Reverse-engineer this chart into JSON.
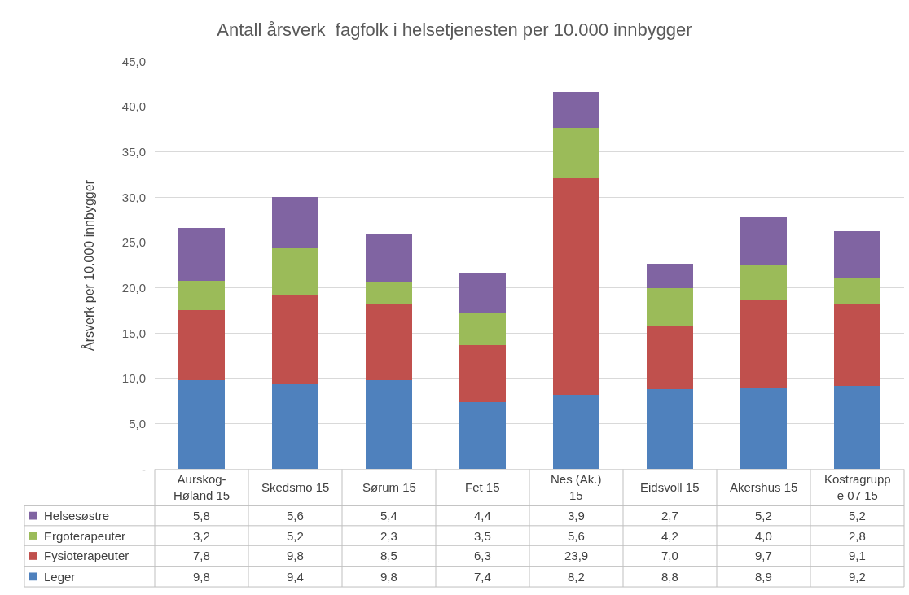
{
  "chart_data": {
    "type": "bar",
    "stacked": true,
    "title": "Antall årsverk  fagfolk i helsetjenesten per 10.000 innbygger",
    "ylabel": "Årsverk per 10.000 innbygger",
    "categories": [
      "Aurskog-Høland 15",
      "Skedsmo 15",
      "Sørum 15",
      "Fet 15",
      "Nes (Ak.) 15",
      "Eidsvoll 15",
      "Akershus 15",
      "Kostragruppe 07 15"
    ],
    "series": [
      {
        "name": "Leger",
        "color": "#4f81bd",
        "values": [
          9.8,
          9.4,
          9.8,
          7.4,
          8.2,
          8.8,
          8.9,
          9.2
        ],
        "value_labels": [
          "9,8",
          "9,4",
          "9,8",
          "7,4",
          "8,2",
          "8,8",
          "8,9",
          "9,2"
        ]
      },
      {
        "name": "Fysioterapeuter",
        "color": "#c0504d",
        "values": [
          7.8,
          9.8,
          8.5,
          6.3,
          23.9,
          7.0,
          9.7,
          9.1
        ],
        "value_labels": [
          "7,8",
          "9,8",
          "8,5",
          "6,3",
          "23,9",
          "7,0",
          "9,7",
          "9,1"
        ]
      },
      {
        "name": "Ergoterapeuter",
        "color": "#9bbb59",
        "values": [
          3.2,
          5.2,
          2.3,
          3.5,
          5.6,
          4.2,
          4.0,
          2.8
        ],
        "value_labels": [
          "3,2",
          "5,2",
          "2,3",
          "3,5",
          "5,6",
          "4,2",
          "4,0",
          "2,8"
        ]
      },
      {
        "name": "Helsesøstre",
        "color": "#8064a2",
        "values": [
          5.8,
          5.6,
          5.4,
          4.4,
          3.9,
          2.7,
          5.2,
          5.2
        ],
        "value_labels": [
          "5,8",
          "5,6",
          "5,4",
          "4,4",
          "3,9",
          "2,7",
          "5,2",
          "5,2"
        ]
      }
    ],
    "ylim": [
      0,
      45
    ],
    "yticks": [
      {
        "value": 0,
        "label": "-"
      },
      {
        "value": 5,
        "label": "5,0"
      },
      {
        "value": 10,
        "label": "10,0"
      },
      {
        "value": 15,
        "label": "15,0"
      },
      {
        "value": 20,
        "label": "20,0"
      },
      {
        "value": 25,
        "label": "25,0"
      },
      {
        "value": 30,
        "label": "30,0"
      },
      {
        "value": 35,
        "label": "35,0"
      },
      {
        "value": 40,
        "label": "40,0"
      },
      {
        "value": 45,
        "label": "45,0"
      }
    ],
    "grid": "y",
    "legend": "bottom left"
  }
}
